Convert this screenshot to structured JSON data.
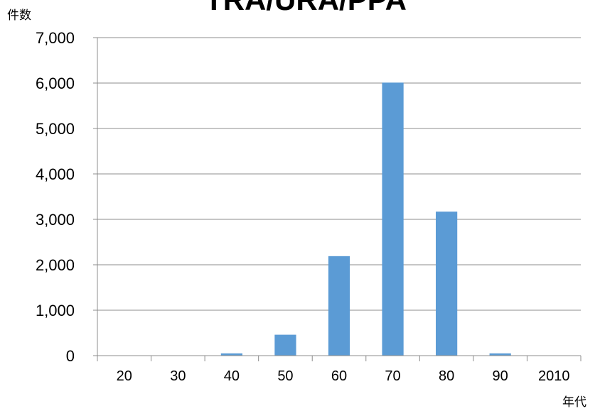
{
  "chart_data": {
    "type": "bar",
    "title": "TRA/URA/PPA",
    "xlabel": "年代",
    "ylabel": "件数",
    "categories": [
      "20",
      "30",
      "40",
      "50",
      "60",
      "70",
      "80",
      "90",
      "2010"
    ],
    "values": [
      0,
      0,
      50,
      460,
      2190,
      6010,
      3170,
      50,
      0
    ],
    "ylim": [
      0,
      7000
    ],
    "yticks": [
      0,
      1000,
      2000,
      3000,
      4000,
      5000,
      6000,
      7000
    ],
    "ytick_labels": [
      "0",
      "1,000",
      "2,000",
      "3,000",
      "4,000",
      "5,000",
      "6,000",
      "7,000"
    ],
    "grid": true,
    "legend": "none",
    "bar_color": "#5b9bd5"
  }
}
